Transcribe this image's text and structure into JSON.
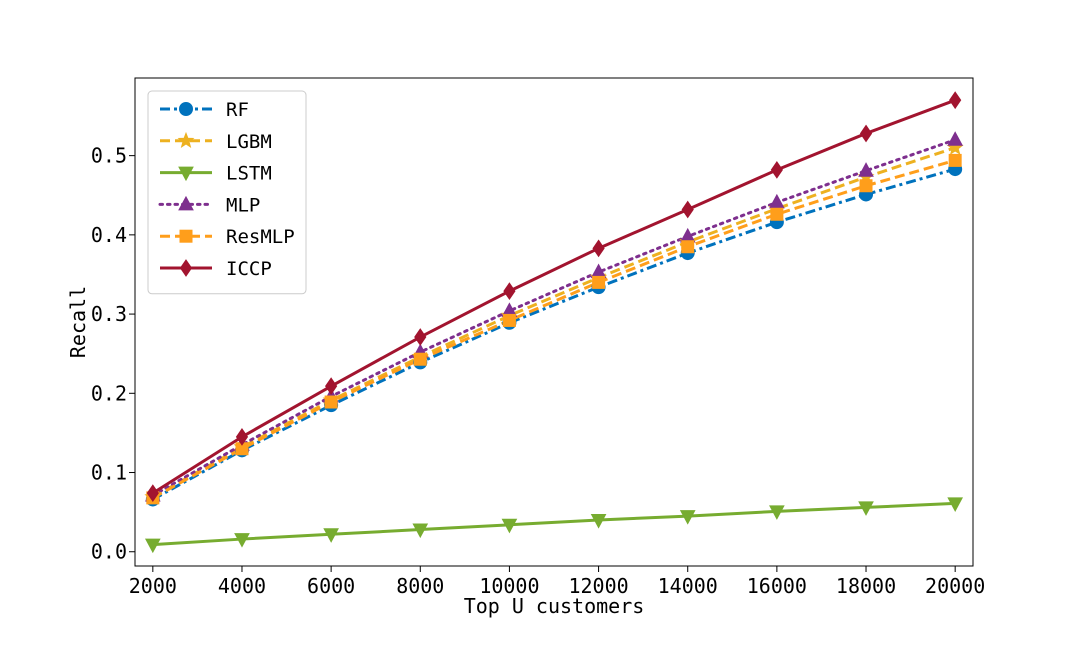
{
  "chart_data": {
    "type": "line",
    "title": "",
    "xlabel": "Top U customers",
    "ylabel": "Recall",
    "x": [
      2000,
      4000,
      6000,
      8000,
      10000,
      12000,
      14000,
      16000,
      18000,
      20000
    ],
    "x_ticks": [
      "2000",
      "4000",
      "6000",
      "8000",
      "10000",
      "12000",
      "14000",
      "16000",
      "18000",
      "20000"
    ],
    "y_ticks": [
      "0.0",
      "0.1",
      "0.2",
      "0.3",
      "0.4",
      "0.5"
    ],
    "xlim": [
      1600,
      20400
    ],
    "ylim": [
      -0.018,
      0.598
    ],
    "grid": false,
    "legend_position": "top-left",
    "series": [
      {
        "name": "RF",
        "color": "#0072BD",
        "dash": "dashdot",
        "marker": "circle",
        "values": [
          0.066,
          0.128,
          0.185,
          0.239,
          0.289,
          0.334,
          0.377,
          0.416,
          0.451,
          0.483
        ]
      },
      {
        "name": "LGBM",
        "color": "#EDB120",
        "dash": "dashed",
        "marker": "star",
        "values": [
          0.069,
          0.132,
          0.191,
          0.246,
          0.298,
          0.346,
          0.391,
          0.433,
          0.473,
          0.51
        ]
      },
      {
        "name": "LSTM",
        "color": "#77AC30",
        "dash": "solid",
        "marker": "triangle-down",
        "values": [
          0.009,
          0.016,
          0.022,
          0.028,
          0.034,
          0.04,
          0.045,
          0.051,
          0.056,
          0.061
        ]
      },
      {
        "name": "MLP",
        "color": "#7E2F8E",
        "dash": "dotted",
        "marker": "triangle-up",
        "values": [
          0.071,
          0.135,
          0.196,
          0.252,
          0.304,
          0.353,
          0.398,
          0.441,
          0.481,
          0.52
        ]
      },
      {
        "name": "ResMLP",
        "color": "#FF9E1B",
        "dash": "dashed",
        "marker": "square",
        "values": [
          0.068,
          0.13,
          0.189,
          0.243,
          0.292,
          0.34,
          0.385,
          0.426,
          0.462,
          0.494
        ]
      },
      {
        "name": "ICCP",
        "color": "#A2142F",
        "dash": "solid",
        "marker": "diamond",
        "values": [
          0.074,
          0.145,
          0.209,
          0.271,
          0.329,
          0.383,
          0.432,
          0.482,
          0.528,
          0.57
        ]
      }
    ]
  }
}
